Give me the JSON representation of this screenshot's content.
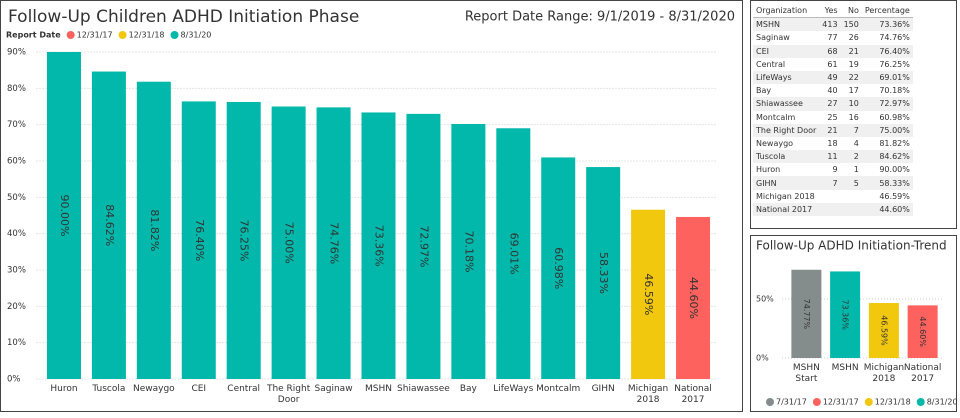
{
  "chart_data": [
    {
      "type": "bar",
      "title": "Follow-Up Children ADHD Initiation Phase",
      "subtitle": "Report Date Range: 9/1/2019 - 8/31/2020",
      "legend_title": "Report Date",
      "categories": [
        "Huron",
        "Tuscola",
        "Newaygo",
        "CEI",
        "Central",
        "The Right Door",
        "Saginaw",
        "MSHN",
        "Shiawassee",
        "Bay",
        "LifeWays",
        "Montcalm",
        "GIHN",
        "Michigan 2018",
        "National 2017"
      ],
      "series": [
        {
          "name": "12/31/17",
          "color": "#fd625e",
          "values": [
            null,
            null,
            null,
            null,
            null,
            null,
            null,
            null,
            null,
            null,
            null,
            null,
            null,
            null,
            44.6
          ],
          "value_labels": [
            null,
            null,
            null,
            null,
            null,
            null,
            null,
            null,
            null,
            null,
            null,
            null,
            null,
            null,
            "44.60%"
          ]
        },
        {
          "name": "12/31/18",
          "color": "#f2c80f",
          "values": [
            null,
            null,
            null,
            null,
            null,
            null,
            null,
            null,
            null,
            null,
            null,
            null,
            null,
            46.59,
            null
          ],
          "value_labels": [
            null,
            null,
            null,
            null,
            null,
            null,
            null,
            null,
            null,
            null,
            null,
            null,
            null,
            "46.59%",
            null
          ]
        },
        {
          "name": "8/31/20",
          "color": "#01b8aa",
          "values": [
            90.0,
            84.62,
            81.82,
            76.4,
            76.25,
            75.0,
            74.76,
            73.36,
            72.97,
            70.18,
            69.01,
            60.98,
            58.33,
            null,
            null
          ],
          "value_labels": [
            "90.00%",
            "84.62%",
            "81.82%",
            "76.40%",
            "76.25%",
            "75.00%",
            "74.76%",
            "73.36%",
            "72.97%",
            "70.18%",
            "69.01%",
            "60.98%",
            "58.33%",
            null,
            null
          ]
        }
      ],
      "ylim": [
        0,
        90
      ],
      "yticks": [
        {
          "value": 0,
          "label": "0%"
        },
        {
          "value": 10,
          "label": "10%"
        },
        {
          "value": 20,
          "label": "20%"
        },
        {
          "value": 30,
          "label": "30%"
        },
        {
          "value": 40,
          "label": "40%"
        },
        {
          "value": 50,
          "label": "50%"
        },
        {
          "value": 60,
          "label": "60%"
        },
        {
          "value": 70,
          "label": "70%"
        },
        {
          "value": 80,
          "label": "80%"
        },
        {
          "value": 90,
          "label": "90%"
        }
      ],
      "grid": true
    },
    {
      "type": "bar",
      "title": "Follow-Up ADHD Initiation-Trend",
      "categories": [
        "MSHN Start",
        "MSHN",
        "Michigan 2018",
        "National 2017"
      ],
      "series": [
        {
          "name": "7/31/17",
          "color": "#858c8c",
          "values": [
            74.77,
            null,
            null,
            null
          ],
          "value_labels": [
            "74.77%",
            null,
            null,
            null
          ]
        },
        {
          "name": "12/31/17",
          "color": "#fd625e",
          "values": [
            null,
            null,
            null,
            44.6
          ],
          "value_labels": [
            null,
            null,
            null,
            "44.60%"
          ]
        },
        {
          "name": "12/31/18",
          "color": "#f2c80f",
          "values": [
            null,
            null,
            46.59,
            null
          ],
          "value_labels": [
            null,
            null,
            "46.59%",
            null
          ]
        },
        {
          "name": "8/31/20",
          "color": "#01b8aa",
          "values": [
            null,
            73.36,
            null,
            null
          ],
          "value_labels": [
            null,
            "73.36%",
            null,
            null
          ]
        }
      ],
      "ylim": [
        0,
        80
      ],
      "yticks": [
        {
          "value": 0,
          "label": "0%"
        },
        {
          "value": 50,
          "label": "50%"
        }
      ],
      "grid": true
    }
  ],
  "table": {
    "columns": [
      "Organization",
      "Yes",
      "No",
      "Percentage"
    ],
    "rows": [
      [
        "MSHN",
        413,
        150,
        "73.36%"
      ],
      [
        "Saginaw",
        77,
        26,
        "74.76%"
      ],
      [
        "CEI",
        68,
        21,
        "76.40%"
      ],
      [
        "Central",
        61,
        19,
        "76.25%"
      ],
      [
        "LifeWays",
        49,
        22,
        "69.01%"
      ],
      [
        "Bay",
        40,
        17,
        "70.18%"
      ],
      [
        "Shiawassee",
        27,
        10,
        "72.97%"
      ],
      [
        "Montcalm",
        25,
        16,
        "60.98%"
      ],
      [
        "The Right Door",
        21,
        7,
        "75.00%"
      ],
      [
        "Newaygo",
        18,
        4,
        "81.82%"
      ],
      [
        "Tuscola",
        11,
        2,
        "84.62%"
      ],
      [
        "Huron",
        9,
        1,
        "90.00%"
      ],
      [
        "GIHN",
        7,
        5,
        "58.33%"
      ],
      [
        "Michigan 2018",
        null,
        null,
        "46.59%"
      ],
      [
        "National 2017",
        null,
        null,
        "44.60%"
      ]
    ]
  }
}
